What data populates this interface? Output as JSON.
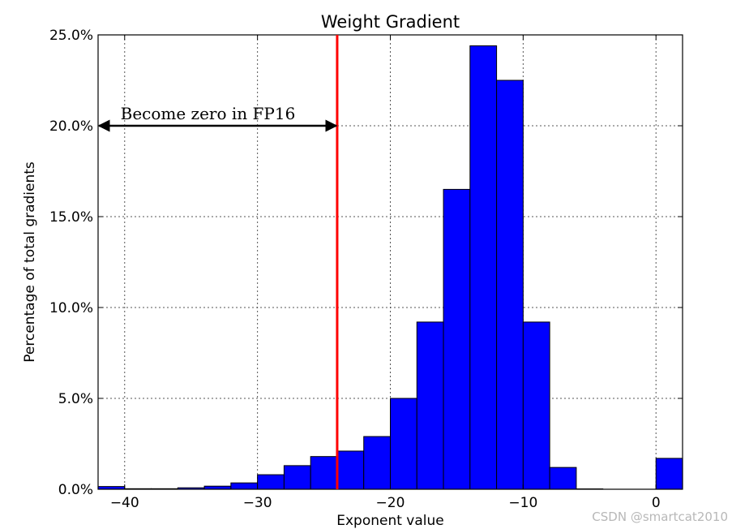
{
  "chart_data": {
    "type": "bar",
    "title": "Weight Gradient",
    "xlabel": "Exponent value",
    "ylabel": "Percentage of total gradients",
    "xlim": [
      -42,
      2
    ],
    "ylim": [
      0,
      25
    ],
    "grid": true,
    "x_ticks": [
      -40,
      -30,
      -20,
      -10,
      0
    ],
    "x_tick_labels": [
      "−40",
      "−30",
      "−20",
      "−10",
      "0"
    ],
    "y_ticks": [
      0,
      5,
      10,
      15,
      20,
      25
    ],
    "y_tick_labels": [
      "0.0%",
      "5.0%",
      "10.0%",
      "15.0%",
      "20.0%",
      "25.0%"
    ],
    "bin_width": 2,
    "bar_color": "#0000ff",
    "bins": [
      {
        "x0": -42,
        "value": 0.15
      },
      {
        "x0": -40,
        "value": 0.03
      },
      {
        "x0": -38,
        "value": 0.03
      },
      {
        "x0": -36,
        "value": 0.08
      },
      {
        "x0": -34,
        "value": 0.17
      },
      {
        "x0": -32,
        "value": 0.35
      },
      {
        "x0": -30,
        "value": 0.8
      },
      {
        "x0": -28,
        "value": 1.3
      },
      {
        "x0": -26,
        "value": 1.8
      },
      {
        "x0": -24,
        "value": 2.1
      },
      {
        "x0": -22,
        "value": 2.9
      },
      {
        "x0": -20,
        "value": 5.0
      },
      {
        "x0": -18,
        "value": 9.2
      },
      {
        "x0": -16,
        "value": 16.5
      },
      {
        "x0": -14,
        "value": 24.4
      },
      {
        "x0": -12,
        "value": 22.5
      },
      {
        "x0": -10,
        "value": 9.2
      },
      {
        "x0": -8,
        "value": 1.2
      },
      {
        "x0": -6,
        "value": 0.02
      },
      {
        "x0": -4,
        "value": 0.0
      },
      {
        "x0": -2,
        "value": 0.0
      },
      {
        "x0": 0,
        "value": 1.7
      }
    ],
    "threshold_line": {
      "x": -24,
      "color": "#ff0000"
    },
    "annotation": {
      "text": "Become zero in FP16",
      "arrow_from": -42,
      "arrow_to": -24,
      "y": 20
    }
  },
  "watermark": "CSDN @smartcat2010"
}
